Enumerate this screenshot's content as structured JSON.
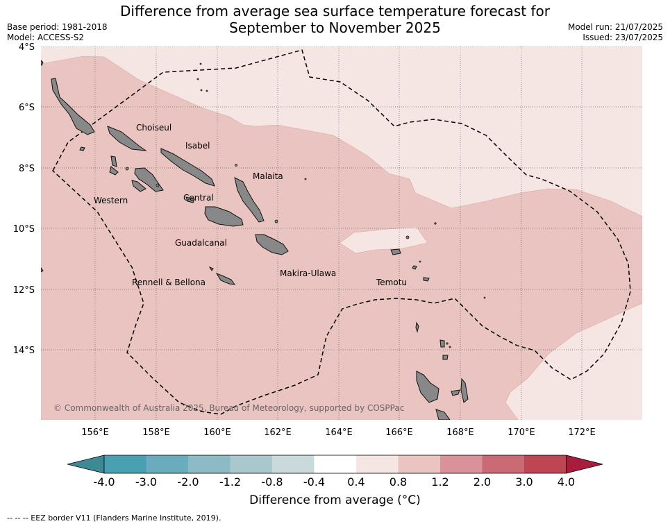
{
  "title_line1": "Difference from average sea surface temperature forecast for",
  "title_line2": "September to November 2025",
  "base_period": "Base period: 1981-2018",
  "model": "Model: ACCESS-S2",
  "model_run": "Model run: 21/07/2025",
  "issued": "Issued: 23/07/2025",
  "lat_labels": [
    "4°S",
    "6°S",
    "8°S",
    "10°S",
    "12°S",
    "14°S"
  ],
  "lon_labels": [
    "156°E",
    "158°E",
    "160°E",
    "162°E",
    "164°E",
    "166°E",
    "168°E",
    "170°E",
    "172°E"
  ],
  "places": {
    "choiseul": "Choiseul",
    "isabel": "Isabel",
    "malaita": "Malaita",
    "western": "Western",
    "central": "Central",
    "guadalcanal": "Guadalcanal",
    "makira": "Makira-Ulawa",
    "rennell": "Rennell & Bellona",
    "temotu": "Temotu"
  },
  "copyright": "© Commonwealth of Australia 2025, Bureau of Meteorology, supported by COSPPac",
  "colorbar": {
    "ticks": [
      "-4.0",
      "-3.0",
      "-2.0",
      "-1.2",
      "-0.8",
      "-0.4",
      "0.4",
      "0.8",
      "1.2",
      "2.0",
      "3.0",
      "4.0"
    ],
    "colors": [
      "#4aa0b3",
      "#6aacbd",
      "#8cbbc6",
      "#a9c8cd",
      "#c9d9dc",
      "#ffffff",
      "#f5e6e4",
      "#e9c4c0",
      "#d9919a",
      "#c96a75",
      "#bd4655"
    ],
    "low_end_color": "#3d8a96",
    "high_end_color": "#a81c3c",
    "title": "Difference from average (°C)"
  },
  "legend_footer": "-- -- -- EEZ border V11 (Flanders Marine Institute, 2019).",
  "anomaly_colors": {
    "band_0_4_to_0_8": "#f5e6e4",
    "band_0_8_to_1_2": "#e9c4c0",
    "land": "#888888"
  }
}
